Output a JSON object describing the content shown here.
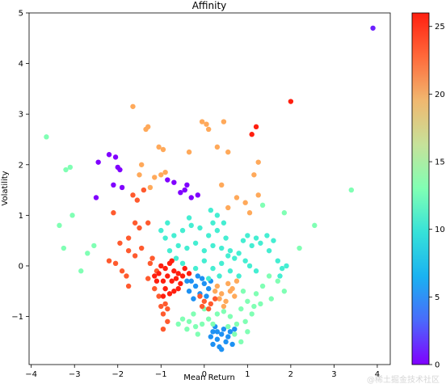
{
  "chart_data": {
    "type": "scatter",
    "title": "Affinity",
    "xlabel": "Mean Return",
    "ylabel": "Volatility",
    "xlim": [
      -4.05,
      4.3
    ],
    "ylim": [
      -1.95,
      5.0
    ],
    "xticks": [
      -4,
      -3,
      -2,
      -1,
      0,
      1,
      2,
      3,
      4
    ],
    "yticks": [
      -1,
      0,
      1,
      2,
      3,
      4,
      5
    ],
    "colorbar": {
      "min": 0,
      "max": 26,
      "ticks": [
        0,
        5,
        10,
        15,
        20,
        25
      ],
      "colormap": "rainbow"
    },
    "grid": false,
    "legend": "none",
    "clusters": [
      {
        "label": 0,
        "points": [
          [
            -2.05,
            2.15
          ],
          [
            -2.0,
            1.95
          ],
          [
            -1.95,
            1.9
          ],
          [
            -2.45,
            2.05
          ],
          [
            -2.5,
            1.35
          ],
          [
            -1.9,
            1.55
          ],
          [
            -2.1,
            1.6
          ],
          [
            -0.7,
            1.65
          ],
          [
            -0.55,
            1.45
          ],
          [
            -0.4,
            1.6
          ],
          [
            -0.3,
            1.35
          ],
          [
            -0.15,
            1.4
          ],
          [
            -0.45,
            1.5
          ],
          [
            -0.85,
            1.7
          ],
          [
            -2.2,
            2.2
          ]
        ]
      },
      {
        "label": 1,
        "points": [
          [
            3.9,
            4.7
          ]
        ]
      },
      {
        "label": 5,
        "points": [
          [
            -0.3,
            -0.3
          ],
          [
            -0.2,
            -0.4
          ],
          [
            -0.1,
            -0.55
          ],
          [
            0.0,
            -0.35
          ],
          [
            -0.35,
            -0.5
          ],
          [
            -0.15,
            -0.2
          ],
          [
            0.05,
            -0.6
          ],
          [
            -0.25,
            -0.65
          ],
          [
            0.1,
            -0.45
          ],
          [
            -0.4,
            -0.3
          ],
          [
            -0.05,
            -0.25
          ],
          [
            0.15,
            -0.3
          ],
          [
            0.2,
            -1.3
          ],
          [
            0.3,
            -1.45
          ],
          [
            0.4,
            -1.35
          ],
          [
            0.5,
            -1.5
          ],
          [
            0.6,
            -1.3
          ],
          [
            0.35,
            -1.6
          ],
          [
            0.25,
            -1.2
          ],
          [
            0.45,
            -1.25
          ],
          [
            0.55,
            -1.4
          ],
          [
            0.65,
            -1.55
          ],
          [
            0.15,
            -1.4
          ],
          [
            0.3,
            -1.3
          ],
          [
            0.4,
            -1.65
          ],
          [
            0.7,
            -1.25
          ],
          [
            0.2,
            -1.55
          ]
        ]
      },
      {
        "label": 10,
        "points": [
          [
            -0.7,
            0.6
          ],
          [
            -0.5,
            0.7
          ],
          [
            -0.3,
            0.8
          ],
          [
            -0.1,
            0.75
          ],
          [
            0.1,
            0.6
          ],
          [
            0.3,
            0.7
          ],
          [
            0.5,
            0.55
          ],
          [
            -0.6,
            0.4
          ],
          [
            -0.4,
            0.35
          ],
          [
            -0.2,
            0.45
          ],
          [
            0.0,
            0.3
          ],
          [
            0.2,
            0.4
          ],
          [
            0.4,
            0.35
          ],
          [
            0.6,
            0.3
          ],
          [
            -0.8,
            0.3
          ],
          [
            -0.9,
            0.55
          ],
          [
            -1.0,
            0.7
          ],
          [
            -0.85,
            0.85
          ],
          [
            0.9,
            0.5
          ],
          [
            1.0,
            0.6
          ],
          [
            1.1,
            0.4
          ],
          [
            1.2,
            0.55
          ],
          [
            1.3,
            0.45
          ],
          [
            1.45,
            0.6
          ],
          [
            1.6,
            0.5
          ],
          [
            1.5,
            0.3
          ],
          [
            0.7,
            0.15
          ],
          [
            0.8,
            0.25
          ],
          [
            0.95,
            0.1
          ],
          [
            1.05,
            0.0
          ],
          [
            1.2,
            -0.1
          ],
          [
            0.0,
            0.1
          ],
          [
            0.2,
            -0.05
          ],
          [
            0.4,
            0.05
          ],
          [
            0.6,
            -0.1
          ],
          [
            0.8,
            -0.2
          ],
          [
            -0.2,
            -0.05
          ],
          [
            0.1,
            -0.25
          ],
          [
            0.35,
            -0.2
          ],
          [
            -0.5,
            0.05
          ],
          [
            0.3,
            1.0
          ],
          [
            0.45,
            0.85
          ],
          [
            0.2,
            0.85
          ],
          [
            -0.35,
            0.95
          ],
          [
            0.15,
            1.1
          ],
          [
            1.7,
            0.1
          ],
          [
            1.8,
            -0.05
          ],
          [
            1.9,
            0.0
          ],
          [
            1.75,
            -0.2
          ],
          [
            -0.65,
            0.15
          ],
          [
            0.55,
            0.2
          ]
        ]
      },
      {
        "label": 13,
        "points": [
          [
            -3.65,
            2.55
          ],
          [
            -3.2,
            1.9
          ],
          [
            -3.1,
            1.95
          ],
          [
            -3.35,
            0.8
          ],
          [
            -3.05,
            1.0
          ],
          [
            -3.25,
            0.35
          ],
          [
            -2.85,
            -0.1
          ],
          [
            -2.55,
            0.4
          ],
          [
            -2.7,
            0.25
          ],
          [
            2.55,
            0.8
          ],
          [
            2.2,
            0.35
          ],
          [
            1.85,
            1.05
          ],
          [
            1.35,
            1.2
          ],
          [
            3.4,
            1.5
          ],
          [
            1.85,
            -0.5
          ],
          [
            1.55,
            -0.65
          ],
          [
            1.7,
            -0.3
          ],
          [
            1.5,
            -0.2
          ],
          [
            1.35,
            -0.4
          ],
          [
            1.2,
            -0.55
          ],
          [
            1.0,
            -0.7
          ],
          [
            0.85,
            -0.85
          ],
          [
            1.1,
            -0.95
          ],
          [
            0.95,
            -1.1
          ],
          [
            0.75,
            -1.15
          ],
          [
            0.6,
            -1.0
          ],
          [
            0.45,
            -0.9
          ],
          [
            0.3,
            -0.95
          ],
          [
            0.1,
            -1.05
          ],
          [
            -0.05,
            -1.15
          ],
          [
            -0.2,
            -1.2
          ],
          [
            -0.35,
            -1.1
          ],
          [
            -0.5,
            -1.05
          ],
          [
            -0.25,
            -0.95
          ],
          [
            0.0,
            -0.85
          ],
          [
            0.7,
            -1.35
          ],
          [
            0.85,
            -1.5
          ],
          [
            1.0,
            -1.3
          ],
          [
            -0.4,
            -1.25
          ],
          [
            -0.6,
            -1.15
          ],
          [
            -0.15,
            -1.35
          ],
          [
            0.2,
            -1.15
          ],
          [
            1.3,
            -0.75
          ],
          [
            0.9,
            -0.5
          ],
          [
            1.15,
            -0.8
          ],
          [
            0.55,
            -1.2
          ]
        ]
      },
      {
        "label": 20,
        "points": [
          [
            -1.65,
            3.15
          ],
          [
            -1.35,
            2.7
          ],
          [
            -1.3,
            2.75
          ],
          [
            -0.05,
            2.85
          ],
          [
            0.05,
            2.8
          ],
          [
            0.1,
            2.7
          ],
          [
            0.45,
            2.85
          ],
          [
            0.3,
            2.35
          ],
          [
            0.55,
            2.25
          ],
          [
            -0.35,
            2.25
          ],
          [
            -0.95,
            2.3
          ],
          [
            -1.05,
            2.35
          ],
          [
            -1.0,
            1.8
          ],
          [
            -0.9,
            1.85
          ],
          [
            -1.45,
            2.0
          ],
          [
            -1.5,
            1.8
          ],
          [
            -1.25,
            1.55
          ],
          [
            -1.15,
            1.75
          ],
          [
            0.4,
            1.6
          ],
          [
            0.75,
            1.35
          ],
          [
            1.25,
            2.05
          ],
          [
            1.15,
            1.8
          ],
          [
            0.55,
            1.15
          ],
          [
            1.05,
            1.05
          ],
          [
            1.25,
            1.4
          ],
          [
            0.95,
            1.25
          ],
          [
            0.6,
            -0.5
          ],
          [
            0.4,
            -0.55
          ],
          [
            0.3,
            -0.4
          ],
          [
            0.5,
            -0.7
          ],
          [
            0.7,
            -0.6
          ],
          [
            0.55,
            -0.35
          ],
          [
            0.35,
            -0.65
          ],
          [
            0.45,
            -0.8
          ],
          [
            0.65,
            -0.45
          ],
          [
            0.25,
            -0.5
          ],
          [
            0.75,
            -0.3
          ]
        ]
      },
      {
        "label": 23,
        "points": [
          [
            -1.65,
            1.4
          ],
          [
            -1.55,
            1.3
          ],
          [
            -1.4,
            1.5
          ],
          [
            -2.1,
            1.05
          ],
          [
            -1.6,
            0.85
          ],
          [
            -1.5,
            0.75
          ],
          [
            -1.3,
            0.85
          ],
          [
            -1.75,
            0.55
          ],
          [
            -1.95,
            0.45
          ],
          [
            -1.75,
            0.3
          ],
          [
            -1.6,
            0.2
          ],
          [
            -1.45,
            0.35
          ],
          [
            -2.2,
            0.1
          ],
          [
            -2.05,
            0.05
          ],
          [
            -1.9,
            -0.1
          ],
          [
            -1.8,
            -0.2
          ],
          [
            -1.75,
            -0.4
          ],
          [
            -1.2,
            0.15
          ],
          [
            -1.25,
            0.05
          ],
          [
            -1.1,
            -0.1
          ],
          [
            -1.3,
            -0.25
          ],
          [
            -1.15,
            -0.45
          ],
          [
            -1.05,
            -0.6
          ],
          [
            -0.9,
            -0.75
          ],
          [
            -0.95,
            -0.95
          ],
          [
            -0.85,
            -1.1
          ],
          [
            -0.95,
            -1.25
          ],
          [
            -0.85,
            -0.85
          ],
          [
            -1.0,
            -0.8
          ],
          [
            -0.1,
            -0.6
          ],
          [
            0.0,
            -0.7
          ],
          [
            0.15,
            -0.75
          ],
          [
            0.25,
            -0.65
          ],
          [
            0.1,
            -0.85
          ],
          [
            -0.05,
            -0.8
          ]
        ]
      },
      {
        "label": 25,
        "points": [
          [
            1.2,
            2.75
          ],
          [
            1.1,
            2.6
          ],
          [
            2.0,
            3.25
          ],
          [
            -0.9,
            -0.05
          ],
          [
            -0.8,
            0.05
          ],
          [
            -0.7,
            -0.1
          ],
          [
            -0.6,
            -0.15
          ],
          [
            -0.5,
            -0.2
          ],
          [
            -0.85,
            -0.2
          ],
          [
            -0.75,
            -0.3
          ],
          [
            -0.65,
            -0.25
          ],
          [
            -0.55,
            -0.35
          ],
          [
            -0.95,
            -0.3
          ],
          [
            -1.05,
            -0.15
          ],
          [
            -1.0,
            0.0
          ],
          [
            -0.9,
            -0.45
          ],
          [
            -0.8,
            -0.55
          ],
          [
            -0.7,
            -0.5
          ],
          [
            -0.6,
            -0.45
          ],
          [
            -1.1,
            -0.3
          ],
          [
            -0.45,
            -0.05
          ],
          [
            -1.15,
            -0.2
          ],
          [
            -0.75,
            0.1
          ],
          [
            -0.95,
            -0.6
          ],
          [
            -0.35,
            -0.15
          ]
        ]
      }
    ]
  }
}
